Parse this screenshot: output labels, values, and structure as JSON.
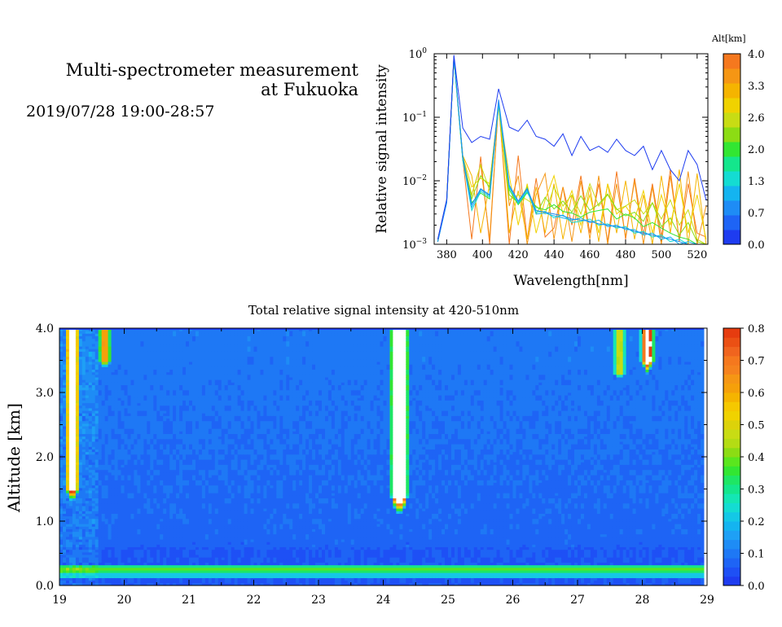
{
  "header": {
    "title_line1": "Multi-spectrometer measurement",
    "title_line2": "at Fukuoka",
    "datetime": "2019/07/28 19:00-28:57"
  },
  "chart_data": [
    {
      "type": "line",
      "title": "",
      "xlabel": "Wavelength[nm]",
      "ylabel": "Relative signal intensity",
      "yscale": "log",
      "xlim": [
        373,
        526
      ],
      "ylim": [
        0.001,
        1
      ],
      "x_ticks": [
        380,
        400,
        420,
        440,
        460,
        480,
        500,
        520
      ],
      "y_tick_labels": [
        {
          "value": 1,
          "base": "10",
          "exp": "0"
        },
        {
          "value": 0.1,
          "base": "10",
          "exp": "−1"
        },
        {
          "value": 0.01,
          "base": "10",
          "exp": "−2"
        },
        {
          "value": 0.001,
          "base": "10",
          "exp": "−3"
        }
      ],
      "legend": {
        "title": "Alt[km]",
        "placement": "right",
        "ticks": [
          "4.0",
          "3.3",
          "2.6",
          "2.0",
          "1.3",
          "0.7",
          "0.0"
        ],
        "colors": [
          "#1e3cf0",
          "#1e64f5",
          "#1e8cf5",
          "#14b4f0",
          "#14dcd2",
          "#14e68c",
          "#32e632",
          "#8cdc14",
          "#c8dc14",
          "#f0d200",
          "#f5b400",
          "#f59614",
          "#f5781e"
        ]
      },
      "x": [
        375,
        380,
        384,
        389,
        394,
        399,
        404,
        409,
        415,
        420,
        425,
        430,
        435,
        440,
        445,
        450,
        455,
        460,
        465,
        470,
        475,
        480,
        485,
        490,
        495,
        500,
        505,
        510,
        515,
        520,
        525
      ],
      "series": [
        {
          "color": "#1e3cf0",
          "values": [
            0.0012,
            0.0051,
            0.95,
            0.068,
            0.04,
            0.05,
            0.045,
            0.28,
            0.07,
            0.06,
            0.09,
            0.05,
            0.045,
            0.035,
            0.055,
            0.025,
            0.05,
            0.03,
            0.035,
            0.028,
            0.045,
            0.03,
            0.025,
            0.035,
            0.015,
            0.03,
            0.015,
            0.01,
            0.03,
            0.018,
            0.005
          ]
        },
        {
          "color": "#1e8cf5",
          "values": [
            0.0011,
            0.0045,
            0.9,
            0.024,
            0.0042,
            0.0075,
            0.006,
            0.19,
            0.0085,
            0.0048,
            0.0075,
            0.0034,
            0.0032,
            0.003,
            0.0028,
            0.0025,
            0.0024,
            0.0023,
            0.0021,
            0.002,
            0.0019,
            0.0018,
            0.0016,
            0.0015,
            0.0014,
            0.0013,
            0.0012,
            0.0011,
            0.001,
            0.001,
            0.001
          ]
        },
        {
          "color": "#14b4f0",
          "values": [
            0.0011,
            0.0046,
            0.88,
            0.023,
            0.0038,
            0.0072,
            0.0058,
            0.17,
            0.008,
            0.0045,
            0.0072,
            0.003,
            0.0031,
            0.0028,
            0.0026,
            0.0024,
            0.0026,
            0.0022,
            0.0024,
            0.0019,
            0.002,
            0.0017,
            0.0017,
            0.0014,
            0.0015,
            0.0012,
            0.0013,
            0.001,
            0.0011,
            0.001,
            0.001
          ]
        },
        {
          "color": "#14dcd2",
          "values": [
            0.0011,
            0.0048,
            0.86,
            0.022,
            0.0034,
            0.0068,
            0.0055,
            0.16,
            0.0078,
            0.0044,
            0.0068,
            0.0032,
            0.0033,
            0.0026,
            0.0029,
            0.0022,
            0.0023,
            0.0025,
            0.002,
            0.0021,
            0.0018,
            0.0019,
            0.0015,
            0.0016,
            0.0013,
            0.0014,
            0.0011,
            0.0012,
            0.001,
            0.001,
            0.001
          ]
        },
        {
          "color": "#32e632",
          "values": [
            0.0011,
            0.005,
            0.84,
            0.021,
            0.0045,
            0.0064,
            0.0052,
            0.17,
            0.0072,
            0.0042,
            0.0065,
            0.0038,
            0.0035,
            0.0042,
            0.0033,
            0.0031,
            0.0027,
            0.0032,
            0.0034,
            0.0036,
            0.0025,
            0.003,
            0.0026,
            0.0019,
            0.0022,
            0.0018,
            0.0015,
            0.0013,
            0.0012,
            0.001,
            0.001
          ]
        },
        {
          "color": "#8cdc14",
          "values": [
            0.0011,
            0.0049,
            0.83,
            0.025,
            0.0052,
            0.012,
            0.008,
            0.16,
            0.006,
            0.0045,
            0.008,
            0.003,
            0.0055,
            0.0036,
            0.0048,
            0.0032,
            0.0058,
            0.0034,
            0.0043,
            0.0062,
            0.0036,
            0.0028,
            0.0032,
            0.0023,
            0.0045,
            0.0019,
            0.0026,
            0.0014,
            0.0022,
            0.0011,
            0.001
          ]
        },
        {
          "color": "#c8dc14",
          "values": [
            0.0011,
            0.005,
            0.82,
            0.022,
            0.006,
            0.018,
            0.007,
            0.15,
            0.005,
            0.006,
            0.005,
            0.004,
            0.003,
            0.008,
            0.004,
            0.006,
            0.003,
            0.009,
            0.004,
            0.006,
            0.0035,
            0.004,
            0.005,
            0.003,
            0.0045,
            0.0025,
            0.005,
            0.002,
            0.0035,
            0.0012,
            0.001
          ]
        },
        {
          "color": "#f0d200",
          "values": [
            0.0011,
            0.0049,
            0.84,
            0.024,
            0.008,
            0.011,
            0.009,
            0.15,
            0.012,
            0.002,
            0.009,
            0.0015,
            0.005,
            0.012,
            0.003,
            0.007,
            0.002,
            0.006,
            0.0015,
            0.009,
            0.003,
            0.004,
            0.0025,
            0.007,
            0.0015,
            0.006,
            0.002,
            0.009,
            0.0015,
            0.006,
            0.0012
          ]
        },
        {
          "color": "#f5b400",
          "values": [
            0.0011,
            0.005,
            0.86,
            0.025,
            0.012,
            0.0015,
            0.009,
            0.16,
            0.0015,
            0.007,
            0.0012,
            0.008,
            0.0015,
            0.009,
            0.0012,
            0.006,
            0.0015,
            0.008,
            0.0011,
            0.009,
            0.0015,
            0.01,
            0.0012,
            0.006,
            0.001,
            0.012,
            0.0015,
            0.015,
            0.001,
            0.013,
            0.001
          ]
        },
        {
          "color": "#f59614",
          "values": [
            0.0011,
            0.0049,
            0.88,
            0.022,
            0.006,
            0.018,
            0.0012,
            0.17,
            0.004,
            0.012,
            0.001,
            0.006,
            0.013,
            0.0012,
            0.008,
            0.0011,
            0.01,
            0.0012,
            0.012,
            0.001,
            0.009,
            0.0013,
            0.01,
            0.001,
            0.008,
            0.001,
            0.012,
            0.0012,
            0.014,
            0.001,
            0.004
          ]
        },
        {
          "color": "#f5781e",
          "values": [
            0.0012,
            0.005,
            0.9,
            0.022,
            0.0012,
            0.024,
            0.001,
            0.18,
            0.001,
            0.025,
            0.0012,
            0.011,
            0.0013,
            0.0018,
            0.008,
            0.002,
            0.012,
            0.0015,
            0.009,
            0.0011,
            0.014,
            0.0012,
            0.011,
            0.0014,
            0.009,
            0.0013,
            0.015,
            0.0011,
            0.009,
            0.0015,
            0.0013
          ]
        }
      ]
    },
    {
      "type": "heatmap",
      "title": "Total relative signal intensity at 420-510nm",
      "xlabel": "",
      "ylabel": "Altitude [km]",
      "xlim": [
        19,
        29
      ],
      "ylim": [
        0,
        4
      ],
      "x_ticks": [
        19,
        20,
        21,
        22,
        23,
        24,
        25,
        26,
        27,
        28,
        29
      ],
      "y_tick_labels": [
        "0.0",
        "1.0",
        "2.0",
        "3.0",
        "4.0"
      ],
      "data_xlim": [
        19,
        28.95
      ],
      "colorbar": {
        "min": 0,
        "max": 0.8,
        "ticks": [
          "0.0",
          "0.1",
          "0.2",
          "0.3",
          "0.4",
          "0.5",
          "0.6",
          "0.7",
          "0.8"
        ],
        "colors": [
          "#1e3cf0",
          "#1e50f5",
          "#1e64f5",
          "#1e78f5",
          "#1e8cf5",
          "#1ea0f5",
          "#14b4f0",
          "#14c8e6",
          "#14dcd2",
          "#14e6b4",
          "#14e68c",
          "#1ee664",
          "#32e632",
          "#5ae61e",
          "#8cdc14",
          "#b4dc14",
          "#c8dc14",
          "#dcd20a",
          "#f0d200",
          "#f5c800",
          "#f5b400",
          "#f5a00a",
          "#f59614",
          "#f5821e",
          "#f5781e",
          "#f0641e",
          "#eb5014",
          "#e63c0f"
        ]
      },
      "features": [
        {
          "type": "plume",
          "time": 24.25,
          "alt_bottom": 1.4,
          "alt_top": 4.0,
          "peak": "above 0.8"
        },
        {
          "type": "cloud",
          "time": 28.08,
          "alt_bottom": 3.5,
          "alt_top": 4.0,
          "peak": "above 0.8"
        },
        {
          "type": "cloud",
          "time": 27.65,
          "alt_bottom": 3.3,
          "alt_top": 3.9,
          "peak": 0.45
        },
        {
          "type": "cloud",
          "time": 19.7,
          "alt_bottom": 3.5,
          "alt_top": 3.95,
          "peak": 0.65
        },
        {
          "type": "cloud",
          "time": 19.2,
          "alt_bottom": 1.5,
          "alt_top": 4.0,
          "peak": "above 0.8"
        },
        {
          "type": "surface_layer",
          "alt": 0.25,
          "value": 0.4
        }
      ]
    }
  ]
}
